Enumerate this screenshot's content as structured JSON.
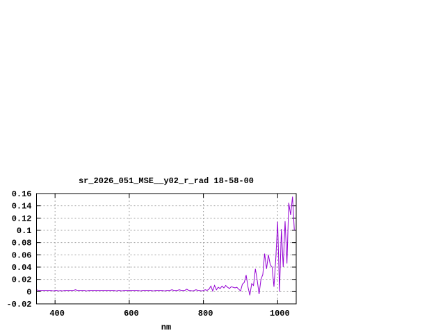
{
  "chart_data": {
    "type": "line",
    "title": "sr_2026_051_MSE__y02_r_rad 18-58-00",
    "xlabel": "nm",
    "ylabel": "",
    "xlim": [
      350,
      1050
    ],
    "ylim": [
      -0.02,
      0.16
    ],
    "xticks": [
      400,
      600,
      800,
      1000
    ],
    "xtick_labels": [
      "400",
      "600",
      "800",
      "1000"
    ],
    "yticks": [
      -0.02,
      0,
      0.02,
      0.04,
      0.06,
      0.08,
      0.1,
      0.12,
      0.14,
      0.16
    ],
    "ytick_labels": [
      "-0.02",
      "0",
      "0.02",
      "0.04",
      "0.06",
      "0.08",
      "0.1",
      "0.12",
      "0.14",
      "0.16"
    ],
    "grid": true,
    "legend": "none",
    "colors": {
      "line": "#9400d3",
      "grid": "#a0a0a0",
      "frame": "#000000"
    },
    "series": [
      {
        "x": [
          350,
          355,
          360,
          365,
          370,
          375,
          380,
          385,
          390,
          395,
          400,
          405,
          410,
          415,
          420,
          425,
          430,
          435,
          440,
          445,
          450,
          455,
          460,
          465,
          470,
          475,
          480,
          485,
          490,
          495,
          500,
          505,
          510,
          515,
          520,
          525,
          530,
          535,
          540,
          545,
          550,
          555,
          560,
          565,
          570,
          575,
          580,
          585,
          590,
          595,
          600,
          605,
          610,
          615,
          620,
          625,
          630,
          635,
          640,
          645,
          650,
          655,
          660,
          665,
          670,
          675,
          680,
          685,
          690,
          695,
          700,
          705,
          710,
          715,
          720,
          725,
          730,
          735,
          740,
          745,
          750,
          755,
          760,
          765,
          770,
          775,
          780,
          785,
          790,
          795,
          800,
          805,
          810,
          815,
          820,
          825,
          830,
          835,
          840,
          845,
          850,
          855,
          860,
          865,
          870,
          875,
          880,
          885,
          890,
          895,
          900,
          905,
          910,
          915,
          920,
          925,
          930,
          935,
          940,
          945,
          950,
          955,
          960,
          965,
          970,
          975,
          980,
          985,
          990,
          995,
          1000,
          1005,
          1010,
          1015,
          1020,
          1025,
          1030,
          1035,
          1040,
          1045
        ],
        "y": [
          0.003,
          0.002,
          0.002,
          0.002,
          0.002,
          0.002,
          0.002,
          0.002,
          0.002,
          0.001,
          0.002,
          0.002,
          0.001,
          0.002,
          0.001,
          0.002,
          0.002,
          0.002,
          0.002,
          0.002,
          0.002,
          0.003,
          0.002,
          0.002,
          0.002,
          0.002,
          0.002,
          0.001,
          0.002,
          0.002,
          0.002,
          0.002,
          0.002,
          0.002,
          0.002,
          0.002,
          0.002,
          0.002,
          0.002,
          0.002,
          0.002,
          0.002,
          0.002,
          0.001,
          0.002,
          0.002,
          0.001,
          0.002,
          0.002,
          0.002,
          0.002,
          0.002,
          0.002,
          0.002,
          0.002,
          0.002,
          0.001,
          0.002,
          0.002,
          0.002,
          0.002,
          0.002,
          0.002,
          0.001,
          0.002,
          0.002,
          0.002,
          0.002,
          0.002,
          0.001,
          0.002,
          0.002,
          0.002,
          0.003,
          0.002,
          0.002,
          0.002,
          0.003,
          0.002,
          0.002,
          0.002,
          0.004,
          0.002,
          0.002,
          0.001,
          0.002,
          0.003,
          0.002,
          0.002,
          0.001,
          0.002,
          0.003,
          0.002,
          0.004,
          0.009,
          0.001,
          0.01,
          0.003,
          0.007,
          0.005,
          0.009,
          0.006,
          0.01,
          0.007,
          0.005,
          0.008,
          0.007,
          0.006,
          0.007,
          0.004,
          0.001,
          0.012,
          0.015,
          0.027,
          0.008,
          -0.006,
          0.013,
          0.01,
          0.037,
          0.018,
          -0.004,
          0.02,
          0.028,
          0.062,
          0.037,
          0.06,
          0.044,
          0.04,
          0.008,
          0.055,
          0.114,
          0.0,
          0.102,
          0.04,
          0.115,
          0.046,
          0.145,
          0.125,
          0.155,
          0.1
        ]
      }
    ]
  }
}
